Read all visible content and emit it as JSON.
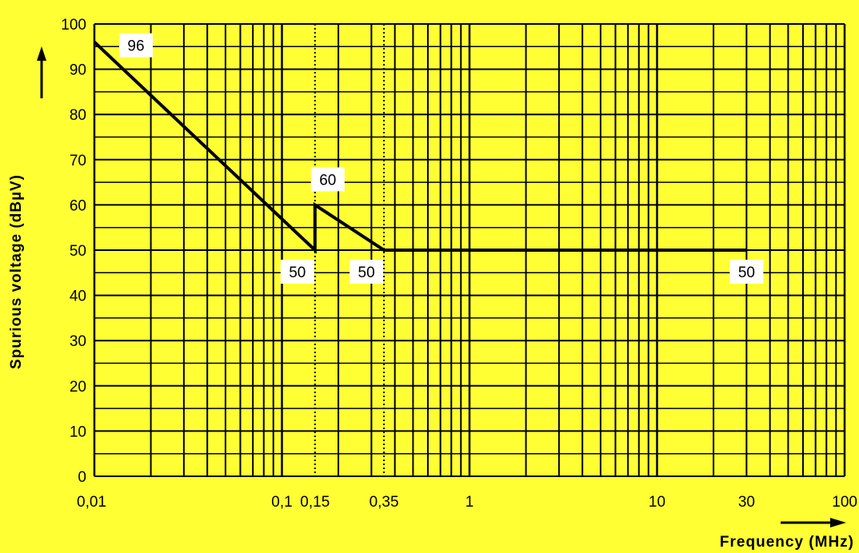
{
  "colors": {
    "background": "#ffff33",
    "grid": "#000000",
    "line": "#000000",
    "label_box": "#ffffff"
  },
  "chart_data": {
    "type": "line",
    "x_scale": "log",
    "xlim": [
      0.01,
      100
    ],
    "ylim": [
      0,
      100
    ],
    "grid": true,
    "xlabel": "Frequency (MHz)",
    "ylabel": "Spurious voltage (dBµV)",
    "x_tick_labels": [
      {
        "value": 0.01,
        "label": "0,01"
      },
      {
        "value": 0.1,
        "label": "0,1"
      },
      {
        "value": 0.15,
        "label": "0,15"
      },
      {
        "value": 0.35,
        "label": "0,35"
      },
      {
        "value": 1,
        "label": "1"
      },
      {
        "value": 10,
        "label": "10"
      },
      {
        "value": 30,
        "label": "30"
      },
      {
        "value": 100,
        "label": "100"
      }
    ],
    "y_ticks": [
      0,
      10,
      20,
      30,
      40,
      50,
      60,
      70,
      80,
      90,
      100
    ],
    "y_tick_labels": [
      "0",
      "10",
      "20",
      "30",
      "40",
      "50",
      "60",
      "70",
      "80",
      "90",
      "100"
    ],
    "reference_lines_x": [
      0.15,
      0.35
    ],
    "series": [
      {
        "points": [
          {
            "x": 0.01,
            "y": 96
          },
          {
            "x": 0.15,
            "y": 50
          },
          {
            "x": 0.15,
            "y": 60
          },
          {
            "x": 0.35,
            "y": 50
          },
          {
            "x": 30,
            "y": 50
          }
        ]
      }
    ],
    "annotations": [
      {
        "text": "96",
        "x": 0.01,
        "y": 96,
        "place": "right"
      },
      {
        "text": "60",
        "x": 0.15,
        "y": 60,
        "place": "above"
      },
      {
        "text": "50",
        "x": 0.15,
        "y": 50,
        "place": "below-left"
      },
      {
        "text": "50",
        "x": 0.35,
        "y": 50,
        "place": "below-left"
      },
      {
        "text": "50",
        "x": 30,
        "y": 50,
        "place": "below"
      }
    ]
  }
}
